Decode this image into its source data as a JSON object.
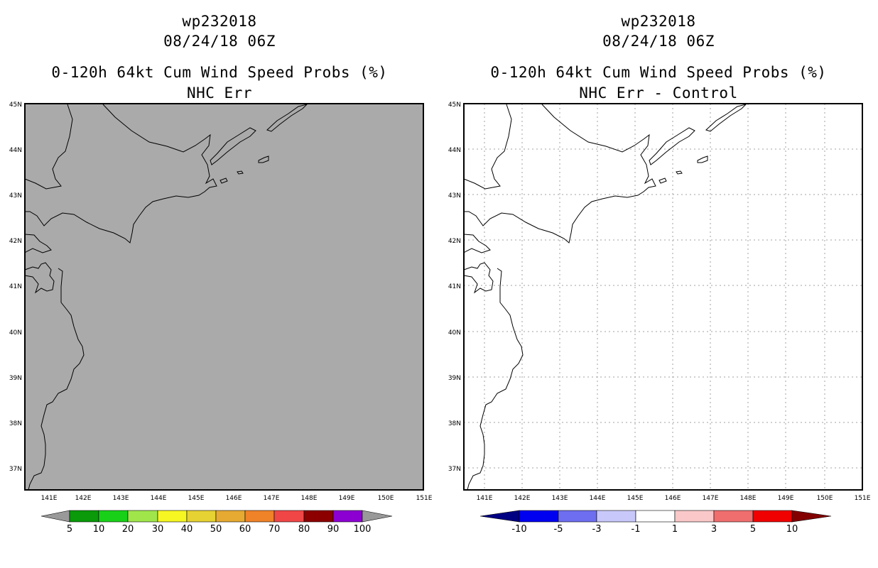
{
  "colors": {
    "left_background": "#aaaaaa",
    "right_background": "#ffffff",
    "coast": "#000000",
    "grid": "#a0a0a0"
  },
  "map": {
    "lon_ticks": [
      "141E",
      "142E",
      "143E",
      "144E",
      "145E",
      "146E",
      "147E",
      "148E",
      "149E",
      "150E",
      "151E"
    ],
    "lat_ticks": [
      "37N",
      "38N",
      "39N",
      "40N",
      "41N",
      "42N",
      "43N",
      "44N",
      "45N"
    ]
  },
  "left": {
    "title1": "wp232018",
    "title2": "08/24/18 06Z",
    "title3": "0-120h 64kt Cum Wind Speed Probs (%)",
    "title4": "NHC Err",
    "colorbar": {
      "colors": [
        "#999999",
        "#0a9a0a",
        "#19d019",
        "#a0e64b",
        "#f6f623",
        "#e6d232",
        "#e6aa32",
        "#f08228",
        "#f04646",
        "#8c0000",
        "#8c00d2",
        "#999999"
      ],
      "labels": [
        "5",
        "10",
        "20",
        "30",
        "40",
        "50",
        "60",
        "70",
        "80",
        "90",
        "100"
      ]
    }
  },
  "right": {
    "title1": "wp232018",
    "title2": "08/24/18 06Z",
    "title3": "0-120h 64kt Cum Wind Speed Probs (%)",
    "title4": "NHC Err - Control",
    "colorbar": {
      "colors": [
        "#000082",
        "#0000f0",
        "#6e6ef0",
        "#c8c8fa",
        "#ffffff",
        "#fac8c8",
        "#f06e6e",
        "#f00000",
        "#820000"
      ],
      "labels": [
        "-10",
        "-5",
        "-3",
        "-1",
        "1",
        "3",
        "5",
        "10"
      ]
    }
  }
}
